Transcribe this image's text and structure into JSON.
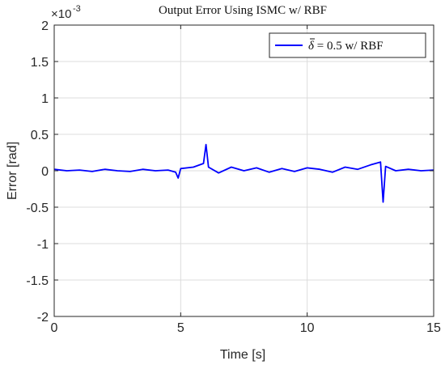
{
  "chart_data": {
    "type": "line",
    "title": "Output Error Using ISMC w/ RBF",
    "xlabel": "Time [s]",
    "ylabel": "Error [rad]",
    "exponent_base": "×10",
    "exponent_power": "-3",
    "xlim": [
      0,
      15
    ],
    "ylim": [
      -2,
      2
    ],
    "xticks": [
      0,
      5,
      10,
      15
    ],
    "xtick_labels": [
      "0",
      "5",
      "10",
      "15"
    ],
    "yticks": [
      -2,
      -1.5,
      -1,
      -0.5,
      0,
      0.5,
      1,
      1.5,
      2
    ],
    "ytick_labels": [
      "-2",
      "-1.5",
      "-1",
      "-0.5",
      "0",
      "0.5",
      "1",
      "1.5",
      "2"
    ],
    "grid": true,
    "legend_position": "top-right",
    "series_color": "#0000ff",
    "series": [
      {
        "name_symbol": "δ",
        "name_rest": " = 0.5  w/ RBF",
        "x": [
          0,
          0.5,
          1,
          1.5,
          2,
          2.5,
          3,
          3.5,
          4,
          4.5,
          4.8,
          4.9,
          5,
          5.5,
          5.9,
          6.0,
          6.1,
          6.5,
          7,
          7.5,
          8,
          8.5,
          9,
          9.5,
          10,
          10.5,
          11,
          11.5,
          12,
          12.5,
          12.9,
          13.0,
          13.1,
          13.5,
          14,
          14.5,
          15
        ],
        "y": [
          0.02,
          0.0,
          0.01,
          -0.01,
          0.02,
          0.0,
          -0.01,
          0.02,
          0.0,
          0.01,
          -0.02,
          -0.1,
          0.03,
          0.05,
          0.1,
          0.36,
          0.05,
          -0.03,
          0.05,
          0.0,
          0.04,
          -0.02,
          0.03,
          -0.01,
          0.04,
          0.02,
          -0.02,
          0.05,
          0.02,
          0.08,
          0.12,
          -0.43,
          0.06,
          0.0,
          0.02,
          0.0,
          0.01
        ]
      }
    ]
  }
}
